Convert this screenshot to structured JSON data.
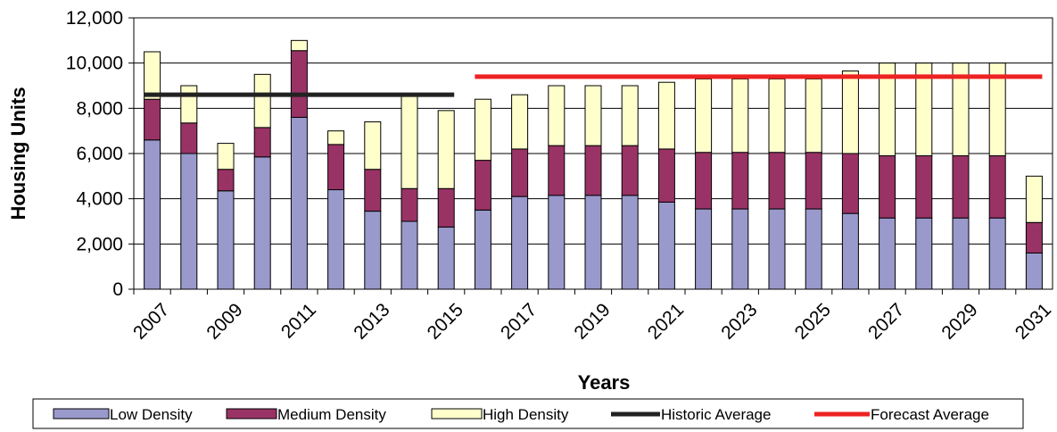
{
  "chart_data": {
    "type": "bar",
    "stacked": true,
    "xlabel": "Years",
    "ylabel": "Housing Units",
    "ylim": [
      0,
      12000
    ],
    "yticks": [
      0,
      2000,
      4000,
      6000,
      8000,
      10000,
      12000
    ],
    "ytick_labels": [
      "0",
      "2,000",
      "4,000",
      "6,000",
      "8,000",
      "10,000",
      "12,000"
    ],
    "categories": [
      "2007",
      "2008",
      "2009",
      "2010",
      "2011",
      "2012",
      "2013",
      "2014",
      "2015",
      "2016",
      "2017",
      "2018",
      "2019",
      "2020",
      "2021",
      "2022",
      "2023",
      "2024",
      "2025",
      "2026",
      "2027",
      "2028",
      "2029",
      "2030",
      "2031"
    ],
    "xtick_labels": [
      "2007",
      "2009",
      "2011",
      "2013",
      "2015",
      "2017",
      "2019",
      "2021",
      "2023",
      "2025",
      "2027",
      "2029",
      "2031"
    ],
    "grid": true,
    "legend_position": "bottom",
    "series": [
      {
        "name": "Low Density",
        "color": "#9999cc",
        "values": [
          6600,
          6000,
          4350,
          5850,
          7600,
          4400,
          3450,
          3000,
          2750,
          3500,
          4100,
          4150,
          4150,
          4150,
          3850,
          3550,
          3550,
          3550,
          3550,
          3350,
          3150,
          3150,
          3150,
          3150,
          1600
        ]
      },
      {
        "name": "Medium Density",
        "color": "#993366",
        "values": [
          1800,
          1350,
          950,
          1300,
          2950,
          2000,
          1850,
          1450,
          1700,
          2200,
          2100,
          2200,
          2200,
          2200,
          2350,
          2500,
          2500,
          2500,
          2500,
          2650,
          2750,
          2750,
          2750,
          2750,
          1350
        ]
      },
      {
        "name": "High Density",
        "color": "#ffffcc",
        "values": [
          2100,
          1650,
          1150,
          2350,
          450,
          600,
          2100,
          4150,
          3450,
          2700,
          2400,
          2650,
          2650,
          2650,
          2950,
          3250,
          3250,
          3250,
          3250,
          3650,
          4100,
          4100,
          4100,
          4100,
          2050
        ]
      }
    ],
    "lines": [
      {
        "name": "Historic Average",
        "color": "#222222",
        "value": 8600,
        "from": "2007",
        "to": "2015"
      },
      {
        "name": "Forecast Average",
        "color": "#ee2222",
        "value": 9400,
        "from": "2016",
        "to": "2031"
      }
    ]
  }
}
